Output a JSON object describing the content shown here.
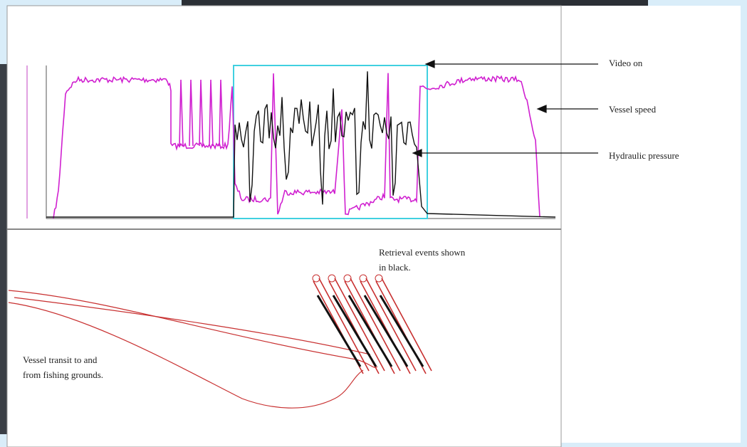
{
  "annotations": {
    "video_on": "Video on",
    "vessel_speed": "Vessel speed",
    "hydraulic_pressure": "Hydraulic pressure"
  },
  "map_notes": {
    "retrieval": [
      "Retrieval events shown",
      "in black."
    ],
    "transit": [
      "Vessel transit to and",
      "from fishing grounds."
    ]
  }
}
